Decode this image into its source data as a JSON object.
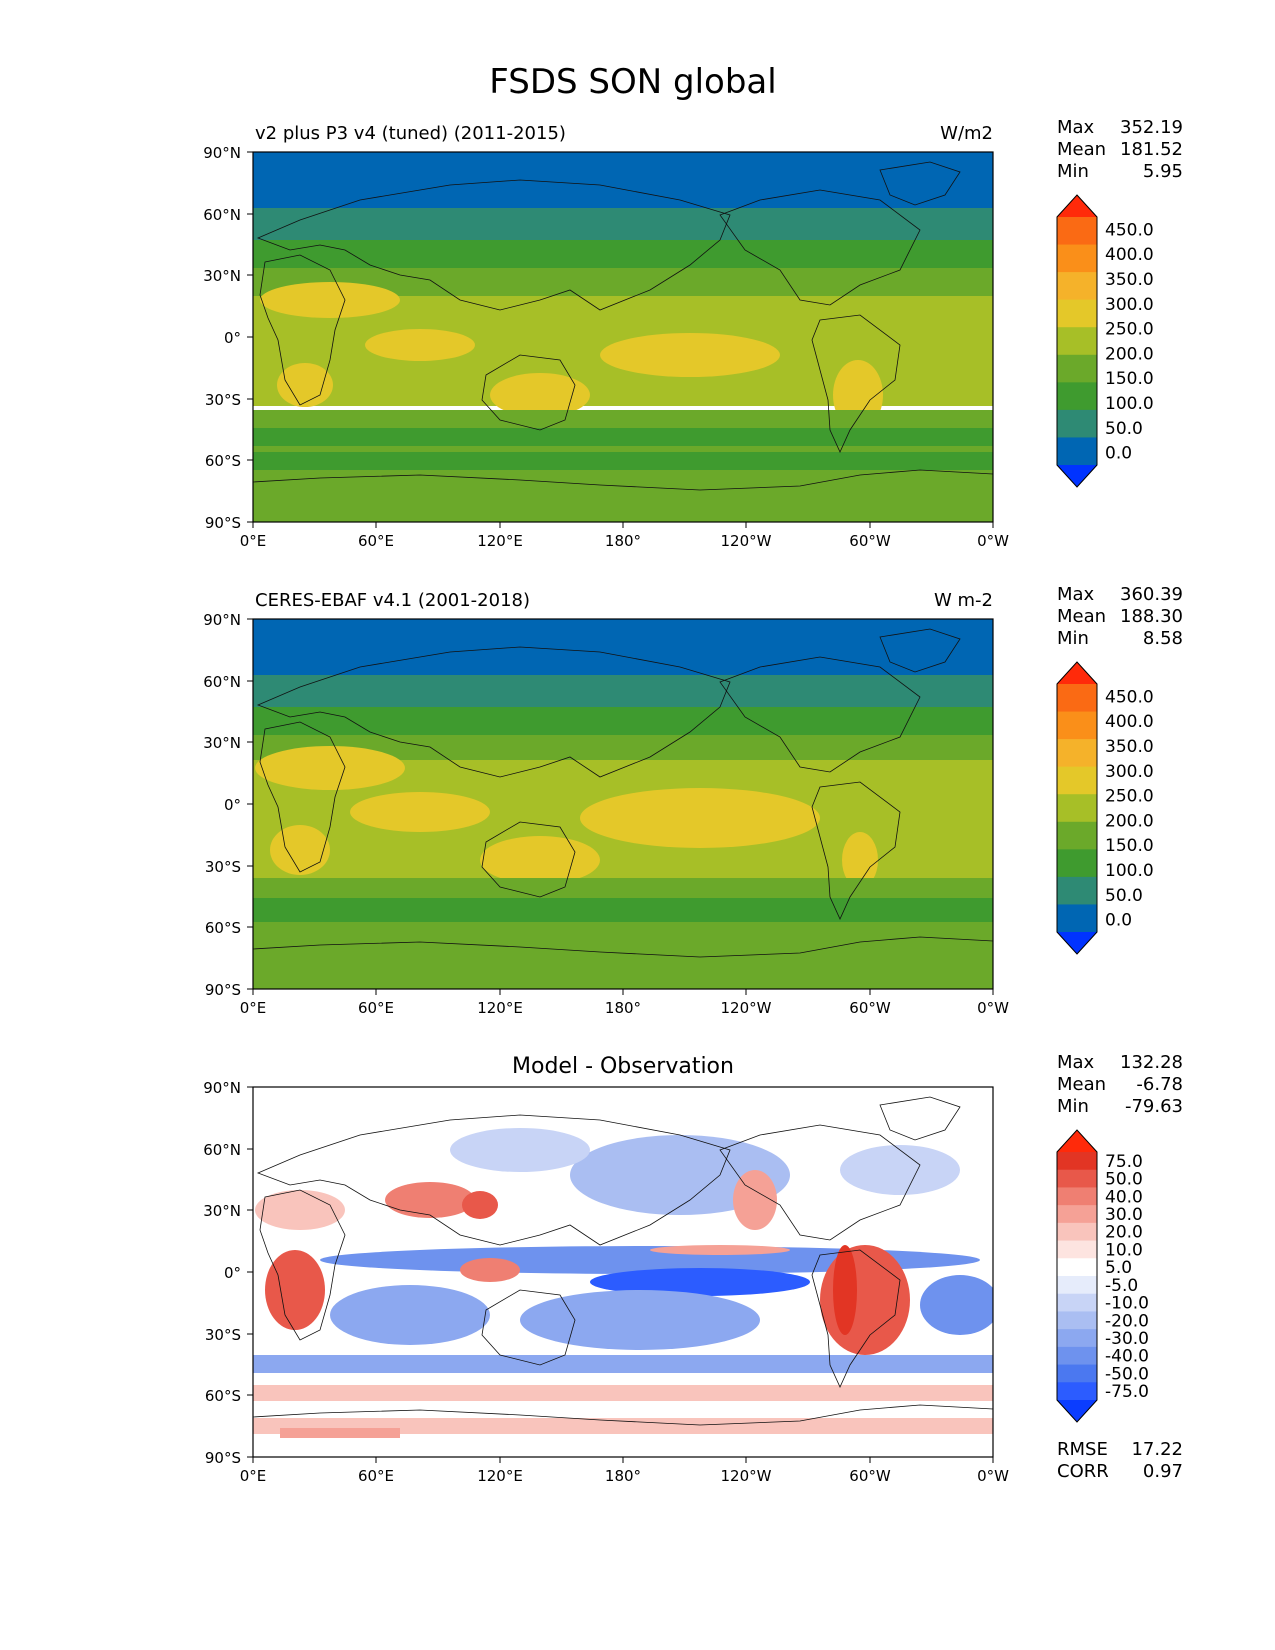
{
  "title": "FSDS SON global",
  "colors": {
    "main_levels": [
      "#0033ff",
      "#0066b3",
      "#2e8a74",
      "#3f9b2f",
      "#6ba92a",
      "#a7bf27",
      "#e4c829",
      "#f5b22a",
      "#fa8f19",
      "#fa6a14",
      "#ff2a0a"
    ],
    "diff_levels": [
      "#0b3dff",
      "#2c5cff",
      "#4b78f0",
      "#6e92ee",
      "#8ca8f0",
      "#aabef2",
      "#c8d4f6",
      "#e6ecfb",
      "#ffffff",
      "#fde4e0",
      "#f9c4bc",
      "#f5a196",
      "#ef7f72",
      "#e8584a",
      "#e23524",
      "#ff2a0a"
    ]
  },
  "panels": [
    {
      "kind": "map",
      "left_title": "v2 plus P3 v4 (tuned) (2011-2015)",
      "right_title": "W/m2",
      "center_title": "",
      "stats": [
        {
          "label": "Max",
          "value": "352.19"
        },
        {
          "label": "Mean",
          "value": "181.52"
        },
        {
          "label": "Min",
          "value": "5.95"
        }
      ],
      "colorbar_labels": [
        "450.0",
        "400.0",
        "350.0",
        "300.0",
        "250.0",
        "200.0",
        "150.0",
        "100.0",
        "50.0",
        "0.0"
      ],
      "bottom_stats": []
    },
    {
      "kind": "map",
      "left_title": "CERES-EBAF v4.1 (2001-2018)",
      "right_title": "W m-2",
      "center_title": "",
      "stats": [
        {
          "label": "Max",
          "value": "360.39"
        },
        {
          "label": "Mean",
          "value": "188.30"
        },
        {
          "label": "Min",
          "value": "8.58"
        }
      ],
      "colorbar_labels": [
        "450.0",
        "400.0",
        "350.0",
        "300.0",
        "250.0",
        "200.0",
        "150.0",
        "100.0",
        "50.0",
        "0.0"
      ],
      "bottom_stats": []
    },
    {
      "kind": "diff",
      "left_title": "",
      "right_title": "",
      "center_title": "Model - Observation",
      "stats": [
        {
          "label": "Max",
          "value": "132.28"
        },
        {
          "label": "Mean",
          "value": "-6.78"
        },
        {
          "label": "Min",
          "value": "-79.63"
        }
      ],
      "colorbar_labels": [
        "75.0",
        "50.0",
        "40.0",
        "30.0",
        "20.0",
        "10.0",
        "5.0",
        "-5.0",
        "-10.0",
        "-20.0",
        "-30.0",
        "-40.0",
        "-50.0",
        "-75.0"
      ],
      "bottom_stats": [
        {
          "label": "RMSE",
          "value": "17.22"
        },
        {
          "label": "CORR",
          "value": "0.97"
        }
      ]
    }
  ],
  "axes": {
    "lat_labels": [
      "90°N",
      "60°N",
      "30°N",
      "0°",
      "30°S",
      "60°S",
      "90°S"
    ],
    "lon_labels": [
      "0°E",
      "60°E",
      "120°E",
      "180°",
      "120°W",
      "60°W",
      "0°W"
    ]
  }
}
